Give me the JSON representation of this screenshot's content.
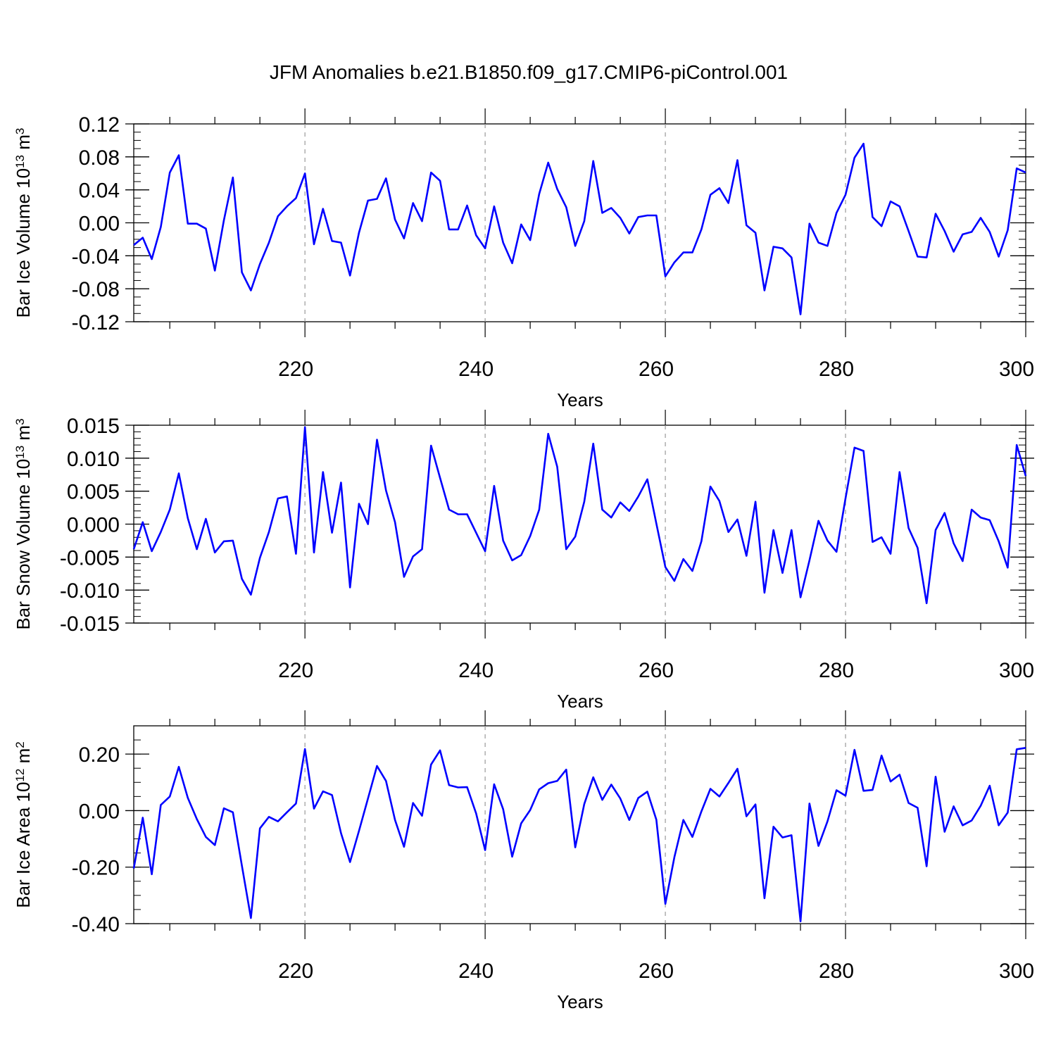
{
  "title": "JFM Anomalies b.e21.B1850.f09_g17.CMIP6-piControl.001",
  "line_color": "#0000ff",
  "chart_data": [
    {
      "type": "line",
      "ylabel_main": "Bar Ice Volume 10",
      "ylabel_exp": "13",
      "ylabel_unit": " m",
      "ylabel_unit_exp": "3",
      "xlabel": "Years",
      "xlim": [
        201,
        300
      ],
      "ylim": [
        -0.12,
        0.12
      ],
      "x_ticks": [
        220,
        240,
        260,
        280,
        300
      ],
      "x_tick_labels": [
        "220",
        "240",
        "260",
        "280",
        "300"
      ],
      "y_ticks": [
        -0.12,
        -0.08,
        -0.04,
        0.0,
        0.04,
        0.08,
        0.12
      ],
      "y_tick_labels": [
        "-0.12",
        "-0.08",
        "-0.04",
        "0.00",
        "0.04",
        "0.08",
        "0.12"
      ],
      "y_minor_step": 0.01,
      "series": [
        {
          "name": "Bar Ice Volume",
          "x_start": 201,
          "values": [
            -0.027,
            -0.018,
            -0.044,
            -0.005,
            0.061,
            0.082,
            -0.001,
            -0.001,
            -0.007,
            -0.058,
            0.003,
            0.055,
            -0.06,
            -0.082,
            -0.05,
            -0.024,
            0.008,
            0.02,
            0.03,
            0.06,
            -0.026,
            0.017,
            -0.022,
            -0.024,
            -0.064,
            -0.012,
            0.027,
            0.029,
            0.054,
            0.004,
            -0.019,
            0.024,
            0.002,
            0.061,
            0.051,
            -0.008,
            -0.008,
            0.021,
            -0.015,
            -0.031,
            0.02,
            -0.024,
            -0.049,
            -0.002,
            -0.021,
            0.035,
            0.073,
            0.041,
            0.019,
            -0.028,
            0.002,
            0.075,
            0.012,
            0.018,
            0.006,
            -0.013,
            0.007,
            0.009,
            0.009,
            -0.065,
            -0.048,
            -0.036,
            -0.036,
            -0.008,
            0.034,
            0.042,
            0.024,
            0.076,
            -0.003,
            -0.012,
            -0.082,
            -0.029,
            -0.031,
            -0.042,
            -0.111,
            -0.001,
            -0.024,
            -0.028,
            0.012,
            0.034,
            0.079,
            0.096,
            0.007,
            -0.004,
            0.026,
            0.02,
            -0.01,
            -0.041,
            -0.042,
            0.011,
            -0.01,
            -0.035,
            -0.014,
            -0.011,
            0.006,
            -0.011,
            -0.041,
            -0.009,
            0.066,
            0.061
          ]
        }
      ]
    },
    {
      "type": "line",
      "ylabel_main": "Bar Snow Volume 10",
      "ylabel_exp": "13",
      "ylabel_unit": " m",
      "ylabel_unit_exp": "3",
      "xlabel": "Years",
      "xlim": [
        201,
        300
      ],
      "ylim": [
        -0.015,
        0.015
      ],
      "x_ticks": [
        220,
        240,
        260,
        280,
        300
      ],
      "x_tick_labels": [
        "220",
        "240",
        "260",
        "280",
        "300"
      ],
      "y_ticks": [
        -0.015,
        -0.01,
        -0.005,
        0.0,
        0.005,
        0.01,
        0.015
      ],
      "y_tick_labels": [
        "-0.015",
        "-0.010",
        "-0.005",
        "0.000",
        "0.005",
        "0.010",
        "0.015"
      ],
      "y_minor_step": 0.001,
      "series": [
        {
          "name": "Bar Snow Volume",
          "x_start": 201,
          "values": [
            -0.0038,
            0.0003,
            -0.0041,
            -0.0012,
            0.0022,
            0.0077,
            0.0009,
            -0.0038,
            0.0008,
            -0.0043,
            -0.0026,
            -0.0025,
            -0.0083,
            -0.0107,
            -0.0051,
            -0.0012,
            0.0039,
            0.0042,
            -0.0045,
            0.0147,
            -0.0043,
            0.0079,
            -0.0013,
            0.0063,
            -0.0096,
            0.0031,
            0.0,
            0.0128,
            0.0051,
            0.0003,
            -0.008,
            -0.0049,
            -0.0038,
            0.0119,
            0.007,
            0.0022,
            0.0015,
            0.0015,
            -0.0013,
            -0.0041,
            0.0058,
            -0.0025,
            -0.0055,
            -0.0047,
            -0.0018,
            0.0022,
            0.0137,
            0.0087,
            -0.0038,
            -0.0019,
            0.0034,
            0.0122,
            0.0022,
            0.001,
            0.0033,
            0.002,
            0.0042,
            0.0068,
            0.0001,
            -0.0065,
            -0.0086,
            -0.0053,
            -0.0071,
            -0.0026,
            0.0057,
            0.0035,
            -0.0012,
            0.0007,
            -0.0048,
            0.0034,
            -0.0104,
            -0.0009,
            -0.0074,
            -0.0009,
            -0.0111,
            -0.0055,
            0.0005,
            -0.0025,
            -0.0042,
            0.0039,
            0.0116,
            0.0111,
            -0.0027,
            -0.002,
            -0.0045,
            0.0079,
            -0.0006,
            -0.0036,
            -0.012,
            -0.0009,
            0.0017,
            -0.0029,
            -0.0056,
            0.0022,
            0.001,
            0.0006,
            -0.0026,
            -0.0066,
            0.012,
            0.0073
          ]
        }
      ]
    },
    {
      "type": "line",
      "ylabel_main": "Bar Ice Area 10",
      "ylabel_exp": "12",
      "ylabel_unit": " m",
      "ylabel_unit_exp": "2",
      "xlabel": "Years",
      "xlim": [
        201,
        300
      ],
      "ylim": [
        -0.4,
        0.3
      ],
      "x_ticks": [
        220,
        240,
        260,
        280,
        300
      ],
      "x_tick_labels": [
        "220",
        "240",
        "260",
        "280",
        "300"
      ],
      "y_ticks": [
        -0.4,
        -0.2,
        0.0,
        0.2
      ],
      "y_tick_labels": [
        "-0.40",
        "-0.20",
        "0.00",
        "0.20"
      ],
      "y_minor_step": 0.05,
      "series": [
        {
          "name": "Bar Ice Area",
          "x_start": 201,
          "values": [
            -0.205,
            -0.025,
            -0.225,
            0.02,
            0.05,
            0.155,
            0.045,
            -0.03,
            -0.093,
            -0.122,
            0.008,
            -0.006,
            -0.195,
            -0.38,
            -0.063,
            -0.022,
            -0.038,
            -0.006,
            0.025,
            0.218,
            0.007,
            0.068,
            0.055,
            -0.08,
            -0.182,
            -0.072,
            0.043,
            0.158,
            0.105,
            -0.033,
            -0.128,
            0.027,
            -0.018,
            0.163,
            0.213,
            0.09,
            0.082,
            0.083,
            -0.01,
            -0.14,
            0.093,
            0.005,
            -0.163,
            -0.045,
            0.002,
            0.075,
            0.097,
            0.105,
            0.145,
            -0.13,
            0.023,
            0.118,
            0.038,
            0.092,
            0.043,
            -0.033,
            0.045,
            0.067,
            -0.032,
            -0.33,
            -0.165,
            -0.033,
            -0.093,
            -0.003,
            0.077,
            0.05,
            0.098,
            0.148,
            -0.02,
            0.022,
            -0.31,
            -0.057,
            -0.095,
            -0.087,
            -0.392,
            0.025,
            -0.125,
            -0.038,
            0.072,
            0.053,
            0.215,
            0.07,
            0.073,
            0.195,
            0.103,
            0.127,
            0.027,
            0.01,
            -0.197,
            0.12,
            -0.075,
            0.015,
            -0.052,
            -0.035,
            0.017,
            0.088,
            -0.052,
            -0.007,
            0.217,
            0.222
          ]
        }
      ]
    }
  ]
}
